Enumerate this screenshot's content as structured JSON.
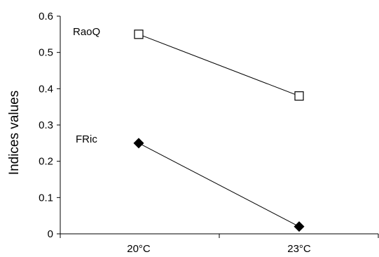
{
  "chart_data": {
    "type": "line",
    "categories": [
      "20°C",
      "23°C"
    ],
    "ylabel": "Indices values",
    "ylim": [
      0,
      0.6
    ],
    "yticks": [
      "0",
      "0.1",
      "0.2",
      "0.3",
      "0.4",
      "0.5",
      "0.6"
    ],
    "grid": false,
    "series": [
      {
        "name": "RaoQ",
        "values": [
          0.55,
          0.38
        ],
        "marker": "square-open",
        "color": "#000000"
      },
      {
        "name": "FRic",
        "values": [
          0.25,
          0.02
        ],
        "marker": "diamond-filled",
        "color": "#000000"
      }
    ]
  }
}
